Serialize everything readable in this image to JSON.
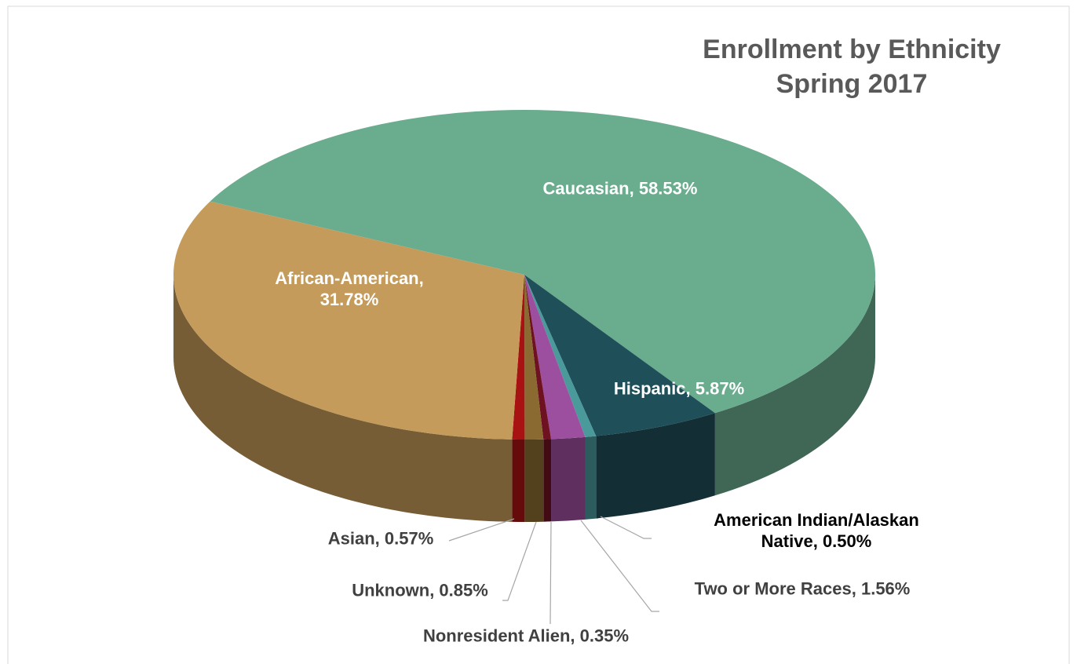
{
  "chart_data": {
    "type": "pie3d",
    "title": "Enrollment by Ethnicity",
    "subtitle": "Spring 2017",
    "categories": [
      "Caucasian",
      "Hispanic",
      "American Indian/Alaskan Native",
      "Two or More Races",
      "Nonresident Alien",
      "Unknown",
      "Asian",
      "African-American"
    ],
    "values": [
      58.53,
      5.87,
      0.5,
      1.56,
      0.35,
      0.85,
      0.57,
      31.78
    ],
    "value_labels": [
      "58.53%",
      "5.87%",
      "0.50%",
      "1.56%",
      "0.35%",
      "0.85%",
      "0.57%",
      "31.78%"
    ],
    "label_separator": ", ",
    "colors": [
      "#6aac8e",
      "#1f4f58",
      "#4a9a9c",
      "#9c4f9e",
      "#6e1222",
      "#8a6a30",
      "#a81212",
      "#c49b5a"
    ]
  }
}
